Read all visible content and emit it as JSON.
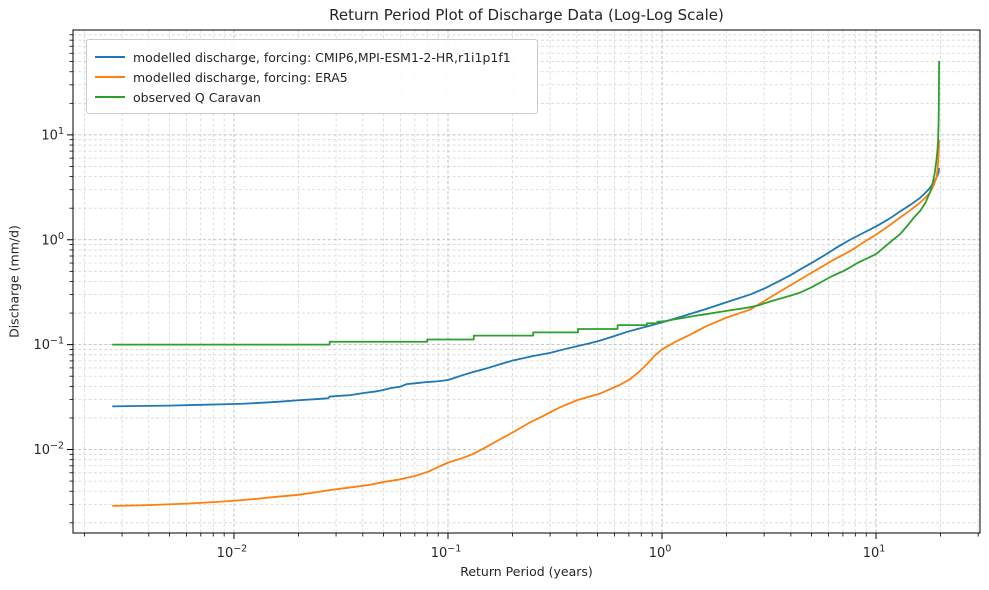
{
  "chart_data": {
    "type": "line",
    "title": "Return Period Plot of Discharge Data (Log-Log Scale)",
    "xlabel": "Return Period (years)",
    "ylabel": "Discharge (mm/d)",
    "x_scale": "log",
    "y_scale": "log",
    "xlim": [
      0.00177,
      30.6
    ],
    "ylim": [
      0.0016,
      100
    ],
    "x_ticks": [
      {
        "value": 0.01,
        "exp": "−2"
      },
      {
        "value": 0.1,
        "exp": "−1"
      },
      {
        "value": 1,
        "exp": "0"
      },
      {
        "value": 10,
        "exp": "1"
      }
    ],
    "y_ticks": [
      {
        "value": 0.01,
        "exp": "−2"
      },
      {
        "value": 0.1,
        "exp": "−1"
      },
      {
        "value": 1,
        "exp": "0"
      },
      {
        "value": 10,
        "exp": "1"
      }
    ],
    "grid": {
      "which": "both",
      "style": "dashed",
      "major_color": "#b3b3b3",
      "minor_color": "#d6d6d6"
    },
    "axis_color": "#000000",
    "legend_position": "upper-left",
    "series": [
      {
        "name": "modelled discharge, forcing: CMIP6,MPI-ESM1-2-HR,r1i1p1f1",
        "color": "#1f77b4",
        "points": [
          [
            0.00272,
            0.0258
          ],
          [
            0.0035,
            0.026
          ],
          [
            0.005,
            0.0262
          ],
          [
            0.007,
            0.0267
          ],
          [
            0.009,
            0.027
          ],
          [
            0.011,
            0.0273
          ],
          [
            0.013,
            0.0278
          ],
          [
            0.016,
            0.0285
          ],
          [
            0.02,
            0.0295
          ],
          [
            0.024,
            0.0302
          ],
          [
            0.0275,
            0.0308
          ],
          [
            0.028,
            0.032
          ],
          [
            0.035,
            0.033
          ],
          [
            0.04,
            0.0345
          ],
          [
            0.046,
            0.0358
          ],
          [
            0.05,
            0.037
          ],
          [
            0.054,
            0.0385
          ],
          [
            0.06,
            0.0398
          ],
          [
            0.064,
            0.042
          ],
          [
            0.07,
            0.0428
          ],
          [
            0.08,
            0.044
          ],
          [
            0.09,
            0.0448
          ],
          [
            0.1,
            0.046
          ],
          [
            0.11,
            0.049
          ],
          [
            0.12,
            0.052
          ],
          [
            0.13,
            0.0545
          ],
          [
            0.15,
            0.059
          ],
          [
            0.175,
            0.065
          ],
          [
            0.2,
            0.0705
          ],
          [
            0.22,
            0.0735
          ],
          [
            0.25,
            0.078
          ],
          [
            0.3,
            0.0835
          ],
          [
            0.35,
            0.0905
          ],
          [
            0.4,
            0.0965
          ],
          [
            0.45,
            0.102
          ],
          [
            0.51,
            0.109
          ],
          [
            0.6,
            0.121
          ],
          [
            0.7,
            0.134
          ],
          [
            0.85,
            0.149
          ],
          [
            1.0,
            0.163
          ],
          [
            1.2,
            0.182
          ],
          [
            1.35,
            0.196
          ],
          [
            1.6,
            0.218
          ],
          [
            1.8,
            0.236
          ],
          [
            2.1,
            0.262
          ],
          [
            2.6,
            0.302
          ],
          [
            3.0,
            0.342
          ],
          [
            3.5,
            0.401
          ],
          [
            4.0,
            0.462
          ],
          [
            4.41,
            0.52
          ],
          [
            5.0,
            0.601
          ],
          [
            5.8,
            0.72
          ],
          [
            6.6,
            0.852
          ],
          [
            7.56,
            1.0
          ],
          [
            8.7,
            1.16
          ],
          [
            10,
            1.34
          ],
          [
            11.5,
            1.58
          ],
          [
            12.95,
            1.86
          ],
          [
            14.5,
            2.16
          ],
          [
            16.06,
            2.51
          ],
          [
            17,
            2.8
          ],
          [
            17.88,
            3.13
          ],
          [
            18.6,
            3.5
          ],
          [
            19.2,
            3.95
          ],
          [
            19.55,
            4.3
          ],
          [
            19.7,
            4.75
          ]
        ]
      },
      {
        "name": "modelled discharge, forcing: ERA5",
        "color": "#ff7f0e",
        "points": [
          [
            0.00272,
            0.0029
          ],
          [
            0.004,
            0.00295
          ],
          [
            0.006,
            0.00305
          ],
          [
            0.008,
            0.00315
          ],
          [
            0.01,
            0.00325
          ],
          [
            0.013,
            0.0034
          ],
          [
            0.016,
            0.00355
          ],
          [
            0.02,
            0.0037
          ],
          [
            0.024,
            0.0039
          ],
          [
            0.028,
            0.0041
          ],
          [
            0.035,
            0.00435
          ],
          [
            0.043,
            0.0046
          ],
          [
            0.05,
            0.0049
          ],
          [
            0.06,
            0.0052
          ],
          [
            0.07,
            0.0056
          ],
          [
            0.08,
            0.0061
          ],
          [
            0.09,
            0.0068
          ],
          [
            0.1,
            0.0075
          ],
          [
            0.115,
            0.0082
          ],
          [
            0.13,
            0.009
          ],
          [
            0.15,
            0.0105
          ],
          [
            0.175,
            0.0125
          ],
          [
            0.2,
            0.0145
          ],
          [
            0.24,
            0.018
          ],
          [
            0.28,
            0.021
          ],
          [
            0.33,
            0.025
          ],
          [
            0.4,
            0.0295
          ],
          [
            0.51,
            0.034
          ],
          [
            0.63,
            0.041
          ],
          [
            0.71,
            0.047
          ],
          [
            0.78,
            0.055
          ],
          [
            0.85,
            0.065
          ],
          [
            0.92,
            0.078
          ],
          [
            1.0,
            0.09
          ],
          [
            1.15,
            0.106
          ],
          [
            1.35,
            0.124
          ],
          [
            1.6,
            0.149
          ],
          [
            2.0,
            0.181
          ],
          [
            2.58,
            0.216
          ],
          [
            3.0,
            0.26
          ],
          [
            3.5,
            0.315
          ],
          [
            4.41,
            0.417
          ],
          [
            5.3,
            0.52
          ],
          [
            6.3,
            0.64
          ],
          [
            7.56,
            0.78
          ],
          [
            8.7,
            0.94
          ],
          [
            10,
            1.12
          ],
          [
            11.5,
            1.36
          ],
          [
            12.95,
            1.63
          ],
          [
            14.5,
            1.92
          ],
          [
            16.06,
            2.26
          ],
          [
            17,
            2.52
          ],
          [
            17.88,
            2.82
          ],
          [
            18.6,
            3.3
          ],
          [
            19.2,
            4.0
          ],
          [
            19.45,
            5.0
          ],
          [
            19.6,
            6.5
          ],
          [
            19.7,
            8.8
          ]
        ]
      },
      {
        "name": "observed Q Caravan",
        "color": "#2ca02c",
        "points": [
          [
            0.00272,
            0.1
          ],
          [
            0.028,
            0.1
          ],
          [
            0.028,
            0.1065
          ],
          [
            0.08,
            0.1065
          ],
          [
            0.08,
            0.112
          ],
          [
            0.132,
            0.112
          ],
          [
            0.132,
            0.122
          ],
          [
            0.25,
            0.122
          ],
          [
            0.25,
            0.131
          ],
          [
            0.405,
            0.131
          ],
          [
            0.405,
            0.141
          ],
          [
            0.62,
            0.141
          ],
          [
            0.62,
            0.1535
          ],
          [
            0.85,
            0.1535
          ],
          [
            0.85,
            0.16
          ],
          [
            0.95,
            0.16
          ],
          [
            0.95,
            0.165
          ],
          [
            1.05,
            0.168
          ],
          [
            1.1,
            0.172
          ],
          [
            1.2,
            0.177
          ],
          [
            1.3,
            0.182
          ],
          [
            1.42,
            0.188
          ],
          [
            1.55,
            0.193
          ],
          [
            1.7,
            0.199
          ],
          [
            1.85,
            0.205
          ],
          [
            2.0,
            0.21
          ],
          [
            2.2,
            0.2165
          ],
          [
            2.4,
            0.222
          ],
          [
            2.58,
            0.2275
          ],
          [
            2.9,
            0.241
          ],
          [
            3.2,
            0.258
          ],
          [
            3.6,
            0.276
          ],
          [
            4.0,
            0.294
          ],
          [
            4.41,
            0.313
          ],
          [
            5.0,
            0.352
          ],
          [
            5.6,
            0.4
          ],
          [
            6.3,
            0.455
          ],
          [
            7.0,
            0.5
          ],
          [
            7.56,
            0.545
          ],
          [
            8.3,
            0.61
          ],
          [
            9.1,
            0.665
          ],
          [
            10,
            0.73
          ],
          [
            11,
            0.86
          ],
          [
            12,
            1.0
          ],
          [
            12.95,
            1.13
          ],
          [
            14,
            1.36
          ],
          [
            15,
            1.62
          ],
          [
            16.06,
            1.88
          ],
          [
            17,
            2.25
          ],
          [
            17.88,
            2.85
          ],
          [
            18.4,
            3.5
          ],
          [
            18.8,
            4.3
          ],
          [
            19.1,
            5.5
          ],
          [
            19.35,
            7.0
          ],
          [
            19.5,
            9.0
          ],
          [
            19.6,
            13.0
          ],
          [
            19.65,
            20.0
          ],
          [
            19.68,
            32.0
          ],
          [
            19.7,
            50.0
          ]
        ]
      }
    ]
  }
}
